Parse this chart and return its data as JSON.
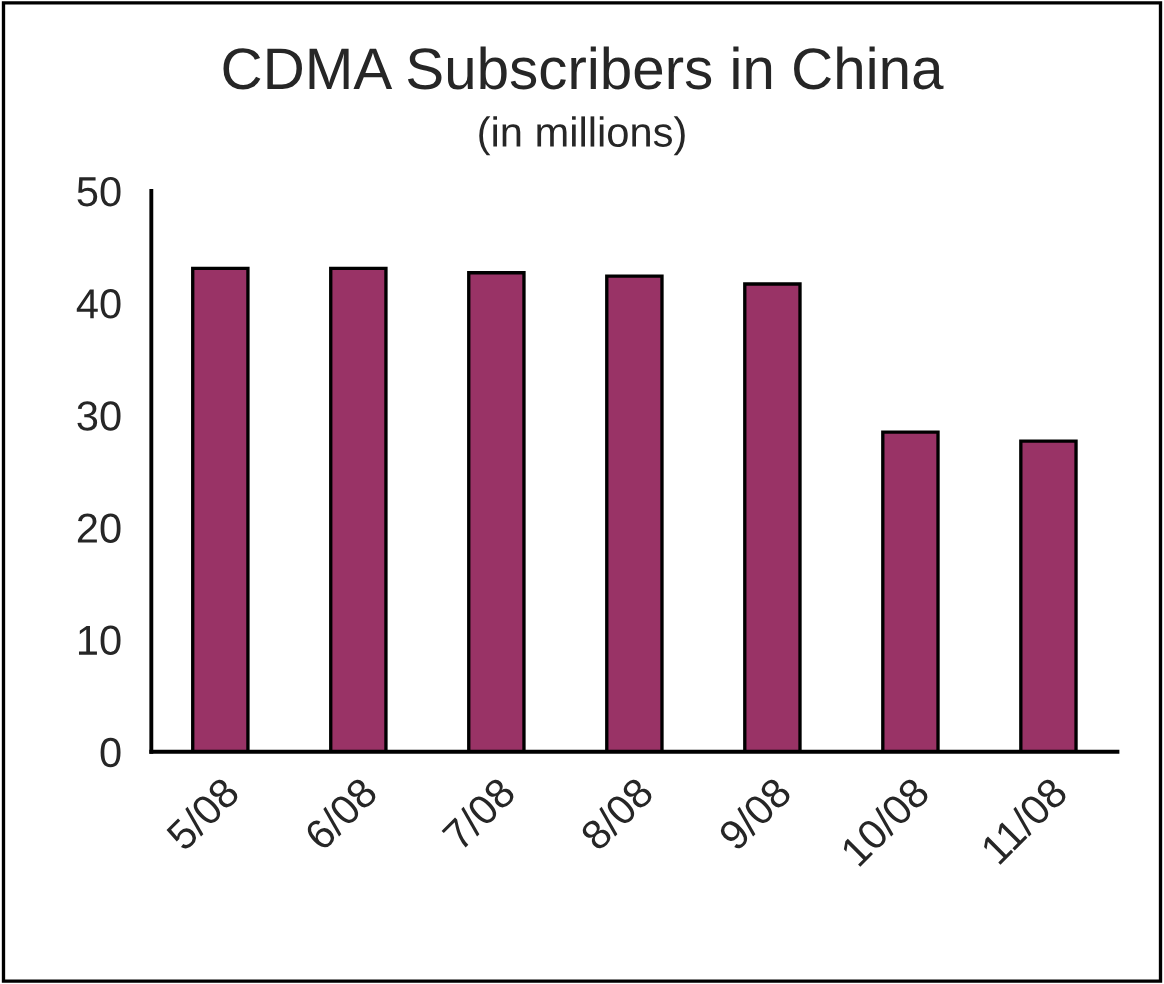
{
  "chart_data": {
    "type": "bar",
    "title": "CDMA Subscribers in China",
    "subtitle": "(in millions)",
    "categories": [
      "5/08",
      "6/08",
      "7/08",
      "8/08",
      "9/08",
      "10/08",
      "11/08"
    ],
    "values": [
      43.1,
      43.1,
      42.7,
      42.4,
      41.7,
      28.5,
      27.7
    ],
    "color": "#993366",
    "ylim": [
      0,
      50
    ],
    "yticks": [
      0,
      10,
      20,
      30,
      40,
      50
    ],
    "grid": false
  }
}
